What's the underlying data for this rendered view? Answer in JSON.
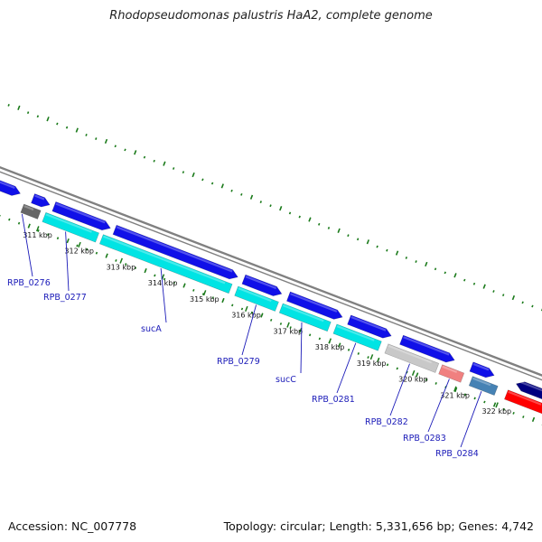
{
  "title": "Rhodopseudomonas palustris HaA2, complete genome",
  "footer": {
    "accession": "Accession: NC_007778",
    "summary": "Topology: circular; Length: 5,331,656 bp; Genes: 4,742"
  },
  "ticks": [
    "311 kbp",
    "312 kbp",
    "313 kbp",
    "314 kbp",
    "315 kbp",
    "316 kbp",
    "317 kbp",
    "318 kbp",
    "319 kbp",
    "320 kbp",
    "321 kbp",
    "322 kbp"
  ],
  "gene_labels": [
    "RPB_0276",
    "RPB_0277",
    "sucA",
    "RPB_0279",
    "sucC",
    "RPB_0281",
    "RPB_0282",
    "RPB_0283",
    "RPB_0284"
  ],
  "colors": {
    "backbone": "#808080",
    "forward_gene": "#1010e8",
    "cds_feature": "#00e4e4",
    "pseudo_feature": "#666666",
    "grey_feature": "#c8c8c8",
    "pink_feature": "#f08080",
    "steelblue_feature": "#4682b4",
    "navy_feature": "#000080",
    "red_feature": "#ff0000",
    "gc_skew_dots": "#1a7a1a",
    "label_text": "#1a1ab8"
  }
}
